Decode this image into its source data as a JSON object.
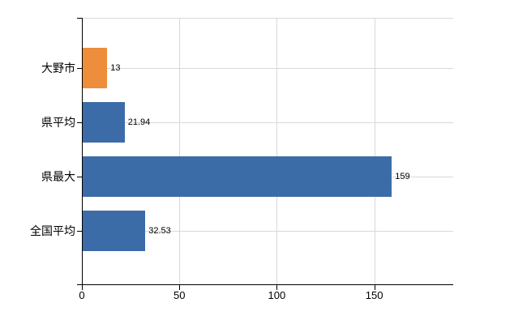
{
  "chart_data": {
    "type": "bar",
    "orientation": "horizontal",
    "title": "",
    "categories": [
      "大野市",
      "県平均",
      "県最大",
      "全国平均"
    ],
    "values": [
      13,
      21.94,
      159,
      32.53
    ],
    "value_labels": [
      "13",
      "21.94",
      "159",
      "32.53"
    ],
    "bar_colors": [
      "#EE8D3B",
      "#3C6CA8",
      "#3C6CA8",
      "#3C6CA8"
    ],
    "x_axis": {
      "min": 0,
      "max": 190.5,
      "ticks": [
        0,
        50,
        100,
        150
      ],
      "tick_labels": [
        "0",
        "50",
        "100",
        "150"
      ]
    },
    "legend": "none",
    "grid": {
      "show": true,
      "color": "#d9d9d9"
    },
    "axis_color": "#000000",
    "background_color": "#ffffff",
    "text_color": "#000000"
  }
}
